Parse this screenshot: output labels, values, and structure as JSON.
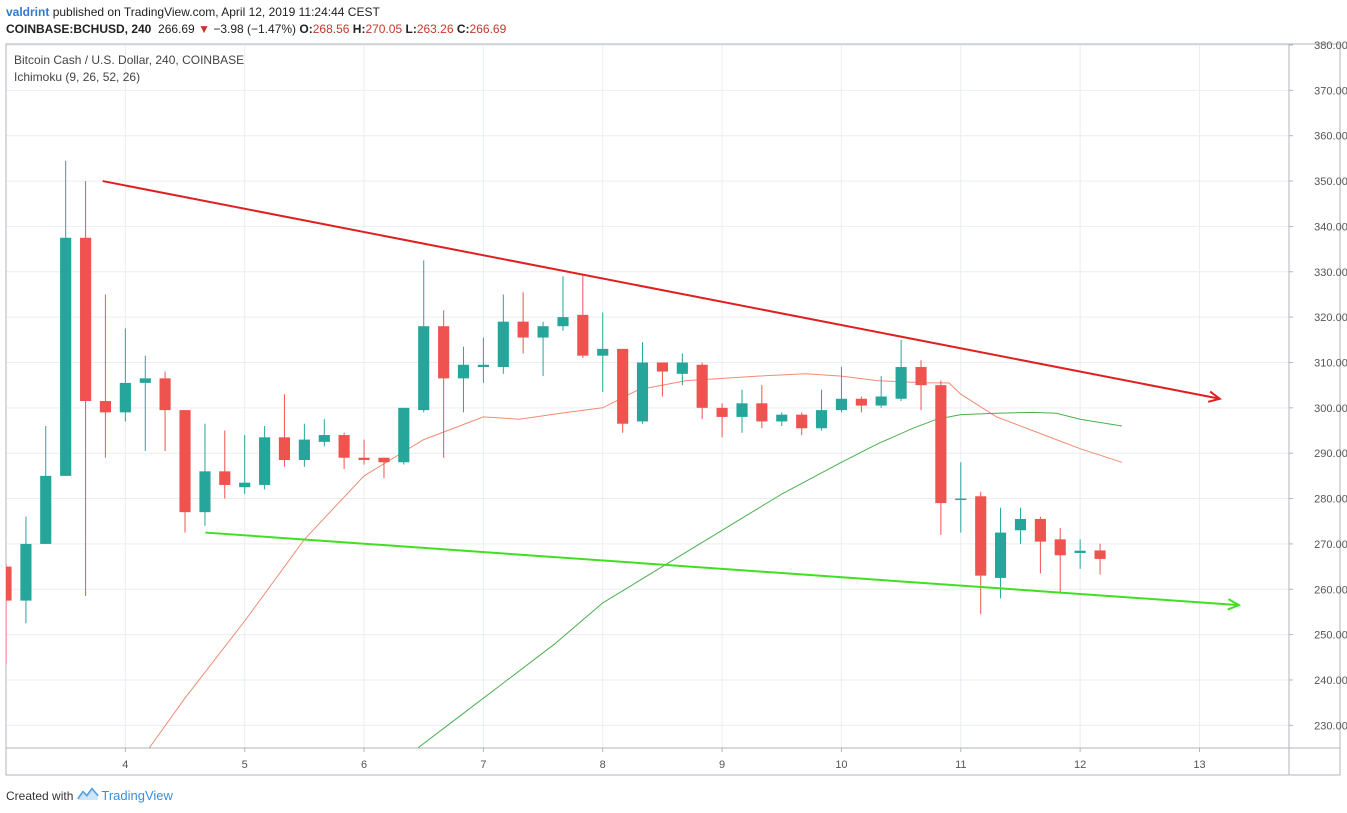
{
  "header": {
    "author": "valdrint",
    "published_text": "published on TradingView.com, April 12, 2019 11:24:44 CEST",
    "symbol": "COINBASE:BCHUSD, 240",
    "last_price": "266.69",
    "change_arrow": "▼",
    "change": "−3.98 (−1.47%)",
    "open_label": "O:",
    "open": "268.56",
    "high_label": "H:",
    "high": "270.05",
    "low_label": "L:",
    "low": "263.26",
    "close_label": "C:",
    "close": "266.69"
  },
  "legend": {
    "title": "Bitcoin Cash / U.S. Dollar, 240, COINBASE",
    "indicator": "Ichimoku (9, 26, 52, 26)"
  },
  "footer": {
    "created_with": "Created with",
    "brand": "TradingView"
  },
  "colors": {
    "up": "#26a69a",
    "down": "#ef5350",
    "conversion_line": "#f28b74",
    "base_line": "#4caf50",
    "resistance_line": "#e02020",
    "support_line": "#40e020",
    "grid": "#e9eef2"
  },
  "chart_data": {
    "type": "candlestick",
    "title": "Bitcoin Cash / U.S. Dollar, 240, COINBASE",
    "ylim": [
      225,
      380
    ],
    "xlim": [
      3.0,
      13.75
    ],
    "x_ticks": [
      4,
      5,
      6,
      7,
      8,
      9,
      10,
      11,
      12,
      13
    ],
    "x_tick_labels": [
      "4",
      "5",
      "6",
      "7",
      "8",
      "9",
      "10",
      "11",
      "12",
      "13"
    ],
    "y_ticks": [
      230,
      240,
      250,
      260,
      270,
      280,
      290,
      300,
      310,
      320,
      330,
      340,
      350,
      360,
      370,
      380
    ],
    "y_tick_labels": [
      "230.00",
      "240.00",
      "250.00",
      "260.00",
      "270.00",
      "280.00",
      "290.00",
      "300.00",
      "310.00",
      "320.00",
      "330.00",
      "340.00",
      "350.00",
      "360.00",
      "370.00",
      "380.00"
    ],
    "candles": [
      {
        "x": 3.0,
        "o": 265,
        "h": 265.5,
        "l": 243.5,
        "c": 257.5
      },
      {
        "x": 3.167,
        "o": 257.5,
        "h": 276,
        "l": 252.5,
        "c": 270
      },
      {
        "x": 3.333,
        "o": 270,
        "h": 296,
        "l": 270,
        "c": 285
      },
      {
        "x": 3.5,
        "o": 285,
        "h": 354.5,
        "l": 285,
        "c": 337.5
      },
      {
        "x": 3.667,
        "o": 337.5,
        "h": 350,
        "l": 258.5,
        "c": 301.5
      },
      {
        "x": 3.833,
        "o": 301.5,
        "h": 325,
        "l": 289,
        "c": 299
      },
      {
        "x": 4.0,
        "o": 299,
        "h": 317.5,
        "l": 297,
        "c": 305.5
      },
      {
        "x": 4.167,
        "o": 305.5,
        "h": 311.5,
        "l": 290.5,
        "c": 306.5
      },
      {
        "x": 4.333,
        "o": 306.5,
        "h": 308,
        "l": 290.5,
        "c": 299.5
      },
      {
        "x": 4.5,
        "o": 299.5,
        "h": 299.5,
        "l": 272.5,
        "c": 277
      },
      {
        "x": 4.667,
        "o": 277,
        "h": 296.5,
        "l": 274,
        "c": 286
      },
      {
        "x": 4.833,
        "o": 286,
        "h": 295,
        "l": 280,
        "c": 283
      },
      {
        "x": 5.0,
        "o": 282.5,
        "h": 294,
        "l": 281,
        "c": 283.5
      },
      {
        "x": 5.167,
        "o": 283,
        "h": 296,
        "l": 282,
        "c": 293.5
      },
      {
        "x": 5.333,
        "o": 293.5,
        "h": 303,
        "l": 287,
        "c": 288.5
      },
      {
        "x": 5.5,
        "o": 288.5,
        "h": 296.5,
        "l": 287,
        "c": 293
      },
      {
        "x": 5.667,
        "o": 292.5,
        "h": 297.5,
        "l": 291.5,
        "c": 294
      },
      {
        "x": 5.833,
        "o": 294,
        "h": 294.5,
        "l": 286.5,
        "c": 289
      },
      {
        "x": 6.0,
        "o": 289,
        "h": 293,
        "l": 287.5,
        "c": 288.5
      },
      {
        "x": 6.167,
        "o": 289,
        "h": 289,
        "l": 284.5,
        "c": 288
      },
      {
        "x": 6.333,
        "o": 288,
        "h": 300,
        "l": 287.5,
        "c": 300
      },
      {
        "x": 6.5,
        "o": 299.5,
        "h": 332.5,
        "l": 299,
        "c": 318
      },
      {
        "x": 6.667,
        "o": 318,
        "h": 321.5,
        "l": 289,
        "c": 306.5
      },
      {
        "x": 6.833,
        "o": 306.5,
        "h": 313.5,
        "l": 299,
        "c": 309.5
      },
      {
        "x": 7.0,
        "o": 309,
        "h": 315.5,
        "l": 305.5,
        "c": 309.5
      },
      {
        "x": 7.167,
        "o": 309,
        "h": 325,
        "l": 307.5,
        "c": 319
      },
      {
        "x": 7.333,
        "o": 319,
        "h": 325.5,
        "l": 312,
        "c": 315.5
      },
      {
        "x": 7.5,
        "o": 315.5,
        "h": 319,
        "l": 307,
        "c": 318
      },
      {
        "x": 7.667,
        "o": 318,
        "h": 329,
        "l": 317,
        "c": 320
      },
      {
        "x": 7.833,
        "o": 320.5,
        "h": 329.5,
        "l": 311,
        "c": 311.5
      },
      {
        "x": 8.0,
        "o": 311.5,
        "h": 321,
        "l": 303.5,
        "c": 313
      },
      {
        "x": 8.167,
        "o": 313,
        "h": 313,
        "l": 294.5,
        "c": 296.5
      },
      {
        "x": 8.333,
        "o": 297,
        "h": 314.5,
        "l": 296.5,
        "c": 310
      },
      {
        "x": 8.5,
        "o": 310,
        "h": 310,
        "l": 302.5,
        "c": 308
      },
      {
        "x": 8.667,
        "o": 307.5,
        "h": 312,
        "l": 305,
        "c": 310
      },
      {
        "x": 8.833,
        "o": 309.5,
        "h": 310,
        "l": 297.5,
        "c": 300
      },
      {
        "x": 9.0,
        "o": 300,
        "h": 301,
        "l": 293.5,
        "c": 298
      },
      {
        "x": 9.167,
        "o": 298,
        "h": 304,
        "l": 294.5,
        "c": 301
      },
      {
        "x": 9.333,
        "o": 301,
        "h": 305,
        "l": 295.5,
        "c": 297
      },
      {
        "x": 9.5,
        "o": 297,
        "h": 299,
        "l": 296,
        "c": 298.5
      },
      {
        "x": 9.667,
        "o": 298.5,
        "h": 299,
        "l": 294,
        "c": 295.5
      },
      {
        "x": 9.833,
        "o": 295.5,
        "h": 304,
        "l": 295,
        "c": 299.5
      },
      {
        "x": 10.0,
        "o": 299.5,
        "h": 309,
        "l": 299,
        "c": 302
      },
      {
        "x": 10.167,
        "o": 302,
        "h": 302.5,
        "l": 299,
        "c": 300.5
      },
      {
        "x": 10.333,
        "o": 300.5,
        "h": 307,
        "l": 300,
        "c": 302.5
      },
      {
        "x": 10.5,
        "o": 302,
        "h": 315,
        "l": 301.5,
        "c": 309
      },
      {
        "x": 10.667,
        "o": 309,
        "h": 310.5,
        "l": 299.5,
        "c": 305
      },
      {
        "x": 10.833,
        "o": 305,
        "h": 306,
        "l": 272,
        "c": 279
      },
      {
        "x": 11.0,
        "o": 280,
        "h": 288,
        "l": 272.5,
        "c": 280
      },
      {
        "x": 11.167,
        "o": 280.5,
        "h": 281.5,
        "l": 254.5,
        "c": 263
      },
      {
        "x": 11.333,
        "o": 262.5,
        "h": 278,
        "l": 258,
        "c": 272.5
      },
      {
        "x": 11.5,
        "o": 273,
        "h": 278,
        "l": 270,
        "c": 275.5
      },
      {
        "x": 11.667,
        "o": 275.5,
        "h": 276,
        "l": 263.5,
        "c": 270.5
      },
      {
        "x": 11.833,
        "o": 271,
        "h": 273.5,
        "l": 259,
        "c": 267.5
      },
      {
        "x": 12.0,
        "o": 268,
        "h": 271,
        "l": 264.5,
        "c": 268.5
      },
      {
        "x": 12.167,
        "o": 268.56,
        "h": 270.05,
        "l": 263.26,
        "c": 266.69
      }
    ],
    "conversion_line": {
      "x": [
        4.2,
        4.5,
        5.0,
        5.5,
        6.0,
        6.5,
        6.8,
        7.0,
        7.3,
        7.7,
        8.0,
        8.3,
        8.7,
        9.0,
        9.3,
        9.7,
        10.0,
        10.3,
        10.7,
        10.9,
        11.0,
        11.3,
        11.6,
        11.8,
        12.0,
        12.35
      ],
      "y": [
        225,
        236,
        253,
        271,
        285,
        293,
        296,
        298,
        297.5,
        299,
        300,
        304,
        306,
        306.5,
        307,
        307.5,
        307,
        306,
        305.5,
        305.5,
        303,
        298,
        295,
        293,
        291,
        288
      ]
    },
    "base_line": {
      "x": [
        6.45,
        6.8,
        7.2,
        7.6,
        8.0,
        8.5,
        9.0,
        9.5,
        10.0,
        10.3,
        10.6,
        10.8,
        11.0,
        11.3,
        11.6,
        11.8,
        12.0,
        12.35
      ],
      "y": [
        225,
        232,
        240,
        248,
        257,
        265,
        273,
        281,
        288,
        292,
        295.5,
        297.5,
        298.5,
        298.8,
        299,
        298.8,
        297.5,
        296
      ]
    },
    "trendlines": [
      {
        "role": "resistance",
        "x1": 3.81,
        "y1": 350,
        "x2": 13.17,
        "y2": 302
      },
      {
        "role": "support",
        "x1": 4.67,
        "y1": 272.5,
        "x2": 13.33,
        "y2": 256.5
      }
    ]
  }
}
